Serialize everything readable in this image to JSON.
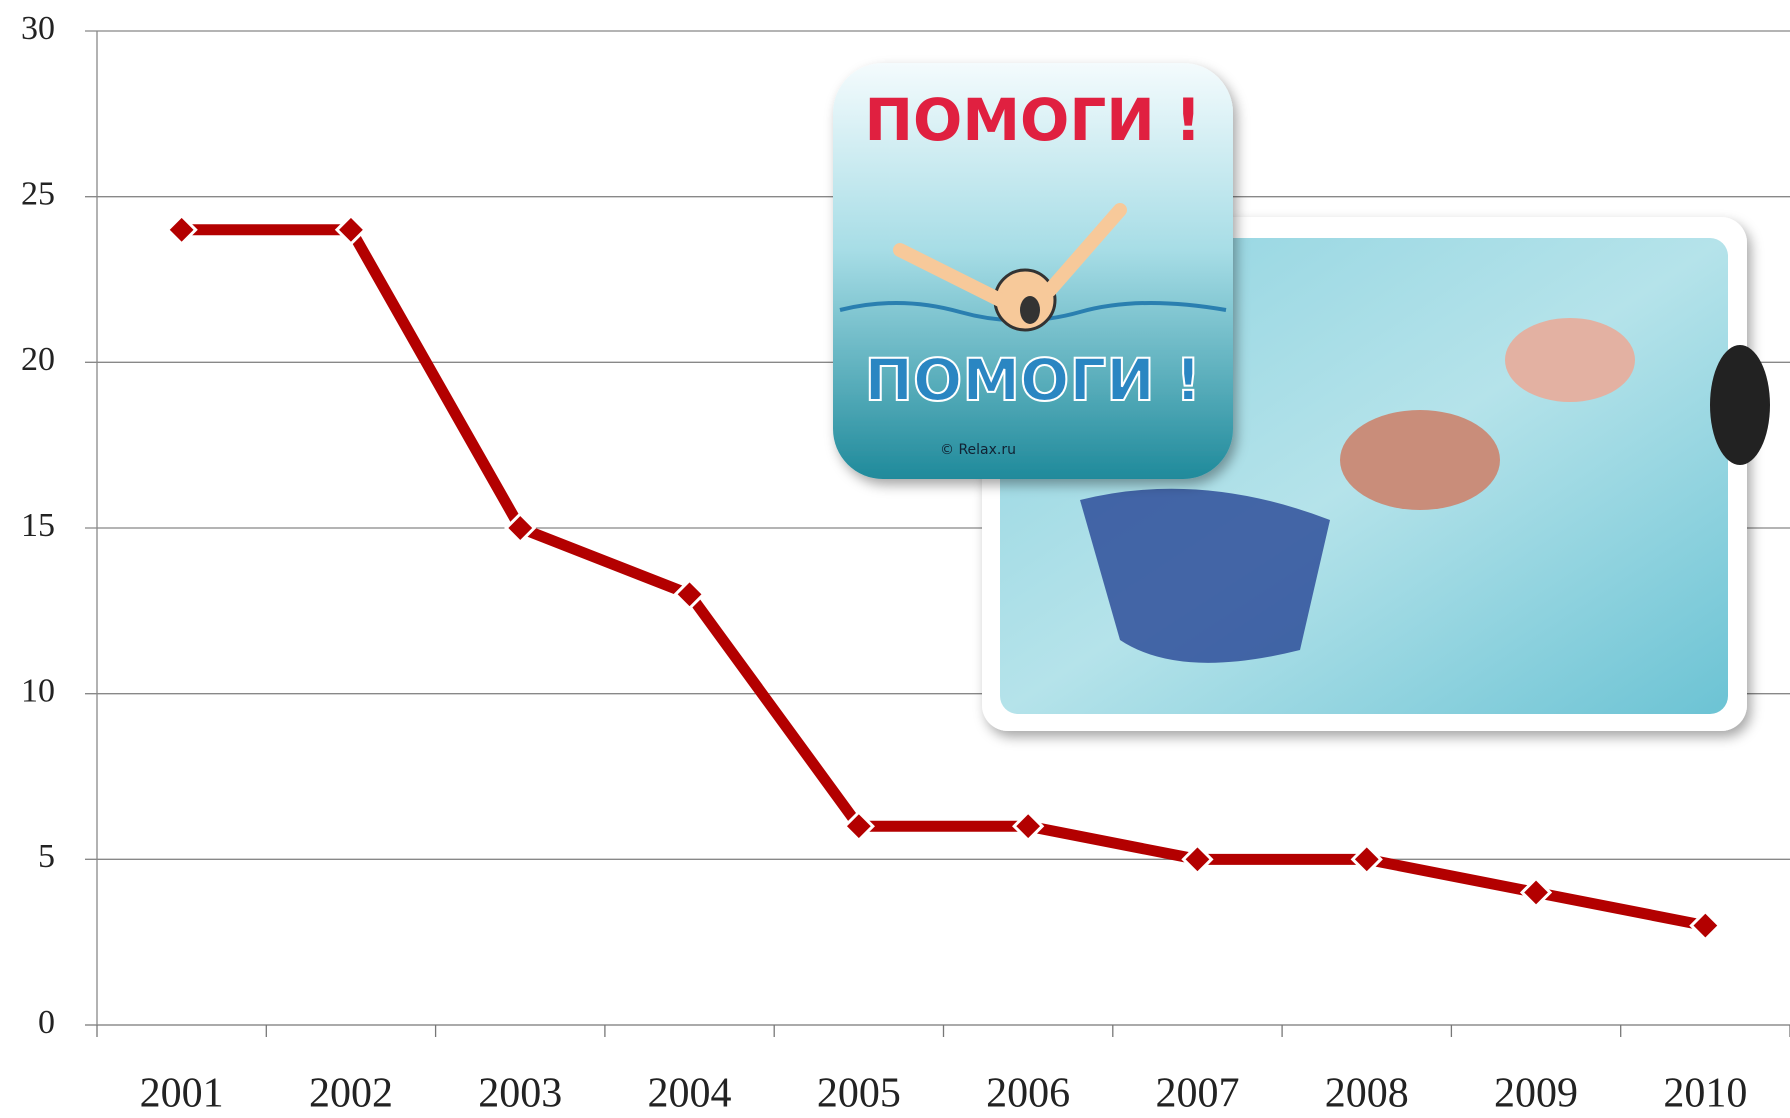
{
  "chart_data": {
    "type": "line",
    "categories": [
      "2001",
      "2002",
      "2003",
      "2004",
      "2005",
      "2006",
      "2007",
      "2008",
      "2009",
      "2010"
    ],
    "series": [
      {
        "color": "#b30000",
        "values": [
          24,
          24,
          15,
          13,
          6,
          6,
          5,
          5,
          4,
          3
        ]
      }
    ],
    "ylim": [
      0,
      30
    ],
    "yticks": [
      0,
      5,
      10,
      15,
      20,
      25,
      30
    ],
    "grid": true
  },
  "illustration": {
    "captions": [
      "ПОМОГИ !",
      "ПОМОГИ !"
    ],
    "credit": "© Relax.ru"
  }
}
